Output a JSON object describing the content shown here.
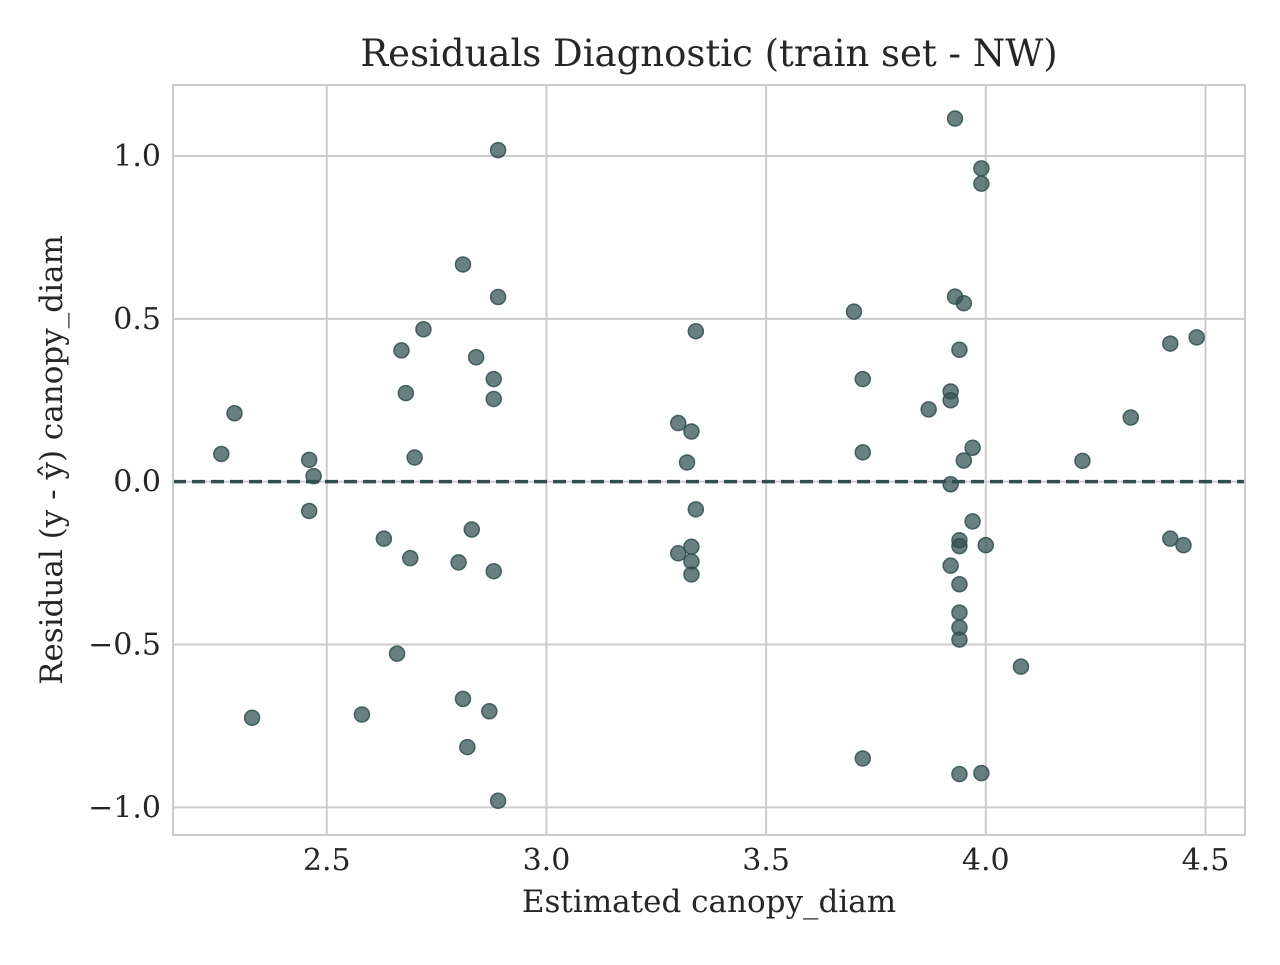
{
  "chart_data": {
    "type": "scatter",
    "title": "Residuals Diagnostic (train set - NW)",
    "xlabel": "Estimated canopy_diam",
    "ylabel": "Residual (y - ŷ) canopy_diam",
    "xlim": [
      2.15,
      4.59
    ],
    "ylim": [
      -1.085,
      1.218
    ],
    "x_ticks": [
      2.5,
      3.0,
      3.5,
      4.0,
      4.5
    ],
    "x_tick_labels": [
      "2.5",
      "3.0",
      "3.5",
      "4.0",
      "4.5"
    ],
    "y_ticks": [
      1.0,
      0.5,
      0.0,
      -0.5,
      -1.0
    ],
    "y_tick_labels": [
      "1.0",
      "0.5",
      "0.0",
      "−0.5",
      "−1.0"
    ],
    "grid": true,
    "reference_line": {
      "y": 0.0,
      "style": "dashed",
      "color": "#2f4f4f"
    },
    "point_color": "#2f4f4f",
    "point_opacity": 0.72,
    "points": [
      {
        "x": 2.26,
        "y": 0.085
      },
      {
        "x": 2.29,
        "y": 0.21
      },
      {
        "x": 2.33,
        "y": -0.725
      },
      {
        "x": 2.46,
        "y": 0.067
      },
      {
        "x": 2.46,
        "y": -0.09
      },
      {
        "x": 2.47,
        "y": 0.017
      },
      {
        "x": 2.58,
        "y": -0.715
      },
      {
        "x": 2.63,
        "y": -0.175
      },
      {
        "x": 2.66,
        "y": -0.528
      },
      {
        "x": 2.67,
        "y": 0.403
      },
      {
        "x": 2.68,
        "y": 0.272
      },
      {
        "x": 2.69,
        "y": -0.235
      },
      {
        "x": 2.7,
        "y": 0.074
      },
      {
        "x": 2.72,
        "y": 0.468
      },
      {
        "x": 2.8,
        "y": -0.248
      },
      {
        "x": 2.81,
        "y": -0.667
      },
      {
        "x": 2.81,
        "y": 0.667
      },
      {
        "x": 2.82,
        "y": -0.815
      },
      {
        "x": 2.83,
        "y": -0.147
      },
      {
        "x": 2.84,
        "y": 0.382
      },
      {
        "x": 2.87,
        "y": -0.705
      },
      {
        "x": 2.88,
        "y": 0.315
      },
      {
        "x": 2.88,
        "y": 0.254
      },
      {
        "x": 2.88,
        "y": -0.275
      },
      {
        "x": 2.89,
        "y": 0.567
      },
      {
        "x": 2.89,
        "y": 1.018
      },
      {
        "x": 2.89,
        "y": -0.98
      },
      {
        "x": 3.3,
        "y": 0.18
      },
      {
        "x": 3.3,
        "y": -0.22
      },
      {
        "x": 3.32,
        "y": 0.059
      },
      {
        "x": 3.33,
        "y": 0.154
      },
      {
        "x": 3.33,
        "y": -0.2
      },
      {
        "x": 3.33,
        "y": -0.245
      },
      {
        "x": 3.33,
        "y": -0.285
      },
      {
        "x": 3.34,
        "y": 0.462
      },
      {
        "x": 3.34,
        "y": -0.085
      },
      {
        "x": 3.7,
        "y": 0.522
      },
      {
        "x": 3.72,
        "y": 0.315
      },
      {
        "x": 3.72,
        "y": 0.09
      },
      {
        "x": 3.72,
        "y": -0.85
      },
      {
        "x": 3.87,
        "y": 0.222
      },
      {
        "x": 3.92,
        "y": 0.277
      },
      {
        "x": 3.92,
        "y": 0.25
      },
      {
        "x": 3.92,
        "y": -0.008
      },
      {
        "x": 3.92,
        "y": -0.258
      },
      {
        "x": 3.93,
        "y": 1.115
      },
      {
        "x": 3.93,
        "y": 0.568
      },
      {
        "x": 3.94,
        "y": 0.405
      },
      {
        "x": 3.94,
        "y": -0.18
      },
      {
        "x": 3.94,
        "y": -0.198
      },
      {
        "x": 3.94,
        "y": -0.315
      },
      {
        "x": 3.94,
        "y": -0.402
      },
      {
        "x": 3.94,
        "y": -0.448
      },
      {
        "x": 3.94,
        "y": -0.485
      },
      {
        "x": 3.94,
        "y": -0.898
      },
      {
        "x": 3.95,
        "y": 0.548
      },
      {
        "x": 3.95,
        "y": 0.065
      },
      {
        "x": 3.97,
        "y": 0.104
      },
      {
        "x": 3.97,
        "y": -0.122
      },
      {
        "x": 3.99,
        "y": 0.962
      },
      {
        "x": 3.99,
        "y": 0.915
      },
      {
        "x": 3.99,
        "y": -0.895
      },
      {
        "x": 4.0,
        "y": -0.195
      },
      {
        "x": 4.08,
        "y": -0.568
      },
      {
        "x": 4.22,
        "y": 0.064
      },
      {
        "x": 4.33,
        "y": 0.197
      },
      {
        "x": 4.42,
        "y": 0.424
      },
      {
        "x": 4.42,
        "y": -0.175
      },
      {
        "x": 4.45,
        "y": -0.195
      },
      {
        "x": 4.48,
        "y": 0.443
      }
    ]
  }
}
